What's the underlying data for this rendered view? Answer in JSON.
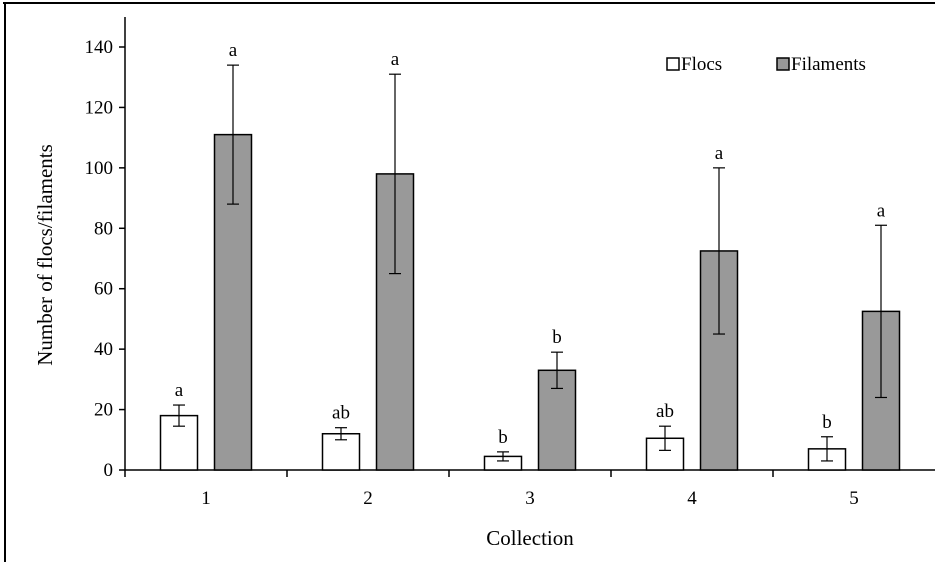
{
  "chart_data": {
    "type": "bar",
    "xlabel": "Collection",
    "ylabel": "Number of flocs/filaments",
    "ylim": [
      0,
      140
    ],
    "yticks": [
      0,
      20,
      40,
      60,
      80,
      100,
      120,
      140
    ],
    "categories": [
      "1",
      "2",
      "3",
      "4",
      "5"
    ],
    "legend_position": "top-right",
    "grid": false,
    "series": [
      {
        "name": "Flocs",
        "color": "#ffffff",
        "values": [
          18,
          12,
          4.5,
          10.5,
          7
        ],
        "error": [
          3.5,
          2,
          1.5,
          4,
          4
        ],
        "labels": [
          "a",
          "ab",
          "b",
          "ab",
          "b"
        ]
      },
      {
        "name": "Filaments",
        "color": "#999999",
        "values": [
          111,
          98,
          33,
          72.5,
          52.5
        ],
        "error": [
          23,
          33,
          6,
          27.5,
          28.5
        ],
        "labels": [
          "a",
          "a",
          "b",
          "a",
          "a"
        ]
      }
    ]
  }
}
